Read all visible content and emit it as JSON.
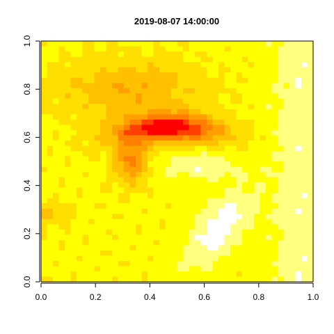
{
  "chart_data": {
    "type": "heatmap",
    "title": "2019-08-07 14:00:00",
    "xlabel": "",
    "ylabel": "",
    "xlim": [
      0,
      1
    ],
    "ylim": [
      0,
      1
    ],
    "x_ticks": [
      "0.0",
      "0.2",
      "0.4",
      "0.6",
      "0.8",
      "1.0"
    ],
    "y_ticks": [
      "0.0",
      "0.2",
      "0.4",
      "0.6",
      "0.8",
      "1.0"
    ],
    "palette": [
      "#ff0000",
      "#ff4000",
      "#ff8000",
      "#ffa000",
      "#ffc000",
      "#ffdf00",
      "#ffff00",
      "#ffff80",
      "#ffffff"
    ],
    "grid": false,
    "legend": "none"
  }
}
